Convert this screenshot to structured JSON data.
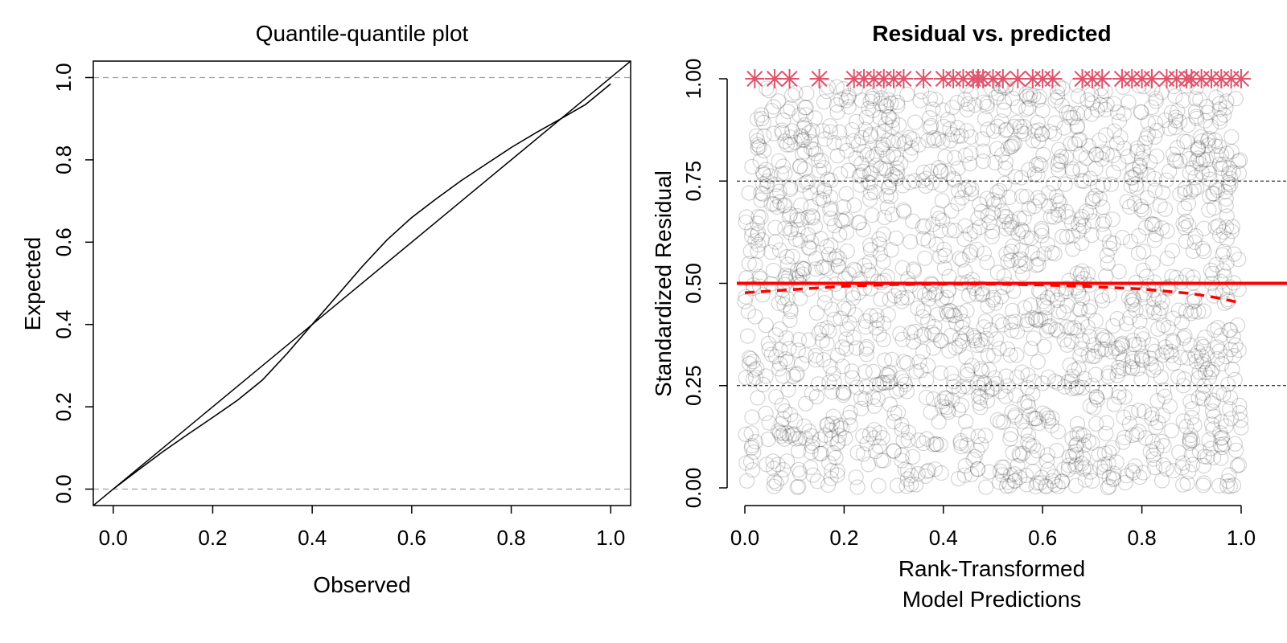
{
  "chart_data": [
    {
      "type": "line",
      "title": "Quantile-quantile plot",
      "xlabel": "Observed",
      "ylabel": "Expected",
      "xlim": [
        -0.04,
        1.04
      ],
      "ylim": [
        -0.04,
        1.04
      ],
      "xticks": [
        "0.0",
        "0.2",
        "0.4",
        "0.6",
        "0.8",
        "1.0"
      ],
      "yticks": [
        "0.0",
        "0.2",
        "0.4",
        "0.6",
        "0.8",
        "1.0"
      ],
      "reference_lines": {
        "identity": true,
        "horizontal_dashed": [
          0,
          1
        ]
      },
      "series": [
        {
          "x": [
            0.0,
            0.05,
            0.1,
            0.15,
            0.2,
            0.25,
            0.3,
            0.35,
            0.4,
            0.45,
            0.5,
            0.55,
            0.6,
            0.65,
            0.7,
            0.75,
            0.8,
            0.85,
            0.9,
            0.95,
            1.0
          ],
          "y": [
            0.0,
            0.046,
            0.091,
            0.133,
            0.174,
            0.216,
            0.265,
            0.33,
            0.4,
            0.47,
            0.54,
            0.605,
            0.66,
            0.706,
            0.75,
            0.79,
            0.83,
            0.866,
            0.9,
            0.935,
            0.985
          ]
        }
      ]
    },
    {
      "type": "scatter",
      "title": "Residual vs. predicted",
      "xlabel": "Rank-Transformed\nModel Predictions",
      "xlabel_lines": [
        "Rank-Transformed",
        "Model Predictions"
      ],
      "ylabel": "Standardized Residual",
      "xlim": [
        0,
        1
      ],
      "ylim": [
        0,
        1
      ],
      "xticks": [
        "0.0",
        "0.2",
        "0.4",
        "0.6",
        "0.8",
        "1.0"
      ],
      "yticks": [
        "0.00",
        "0.25",
        "0.50",
        "0.75",
        "1.00"
      ],
      "reference_lines": {
        "horizontal_solid": 0.5,
        "horizontal_dashed": [
          0.25,
          0.75
        ]
      },
      "smooth_fit": {
        "x": [
          0.0,
          0.1,
          0.2,
          0.3,
          0.4,
          0.5,
          0.6,
          0.7,
          0.8,
          0.9,
          0.95,
          1.0
        ],
        "y": [
          0.477,
          0.485,
          0.493,
          0.497,
          0.498,
          0.498,
          0.496,
          0.492,
          0.486,
          0.475,
          0.465,
          0.452
        ]
      },
      "outliers_y": 1.0,
      "outliers_x": [
        0.02,
        0.06,
        0.09,
        0.15,
        0.22,
        0.24,
        0.26,
        0.28,
        0.3,
        0.32,
        0.36,
        0.4,
        0.42,
        0.44,
        0.46,
        0.47,
        0.48,
        0.5,
        0.52,
        0.55,
        0.58,
        0.6,
        0.62,
        0.68,
        0.7,
        0.72,
        0.76,
        0.78,
        0.8,
        0.82,
        0.85,
        0.87,
        0.89,
        0.9,
        0.92,
        0.94,
        0.96,
        0.98,
        1.0
      ],
      "point_count": 1800,
      "colors": {
        "points": "#000000",
        "outliers": "#DF536B",
        "reference": "#FF0000"
      }
    }
  ]
}
